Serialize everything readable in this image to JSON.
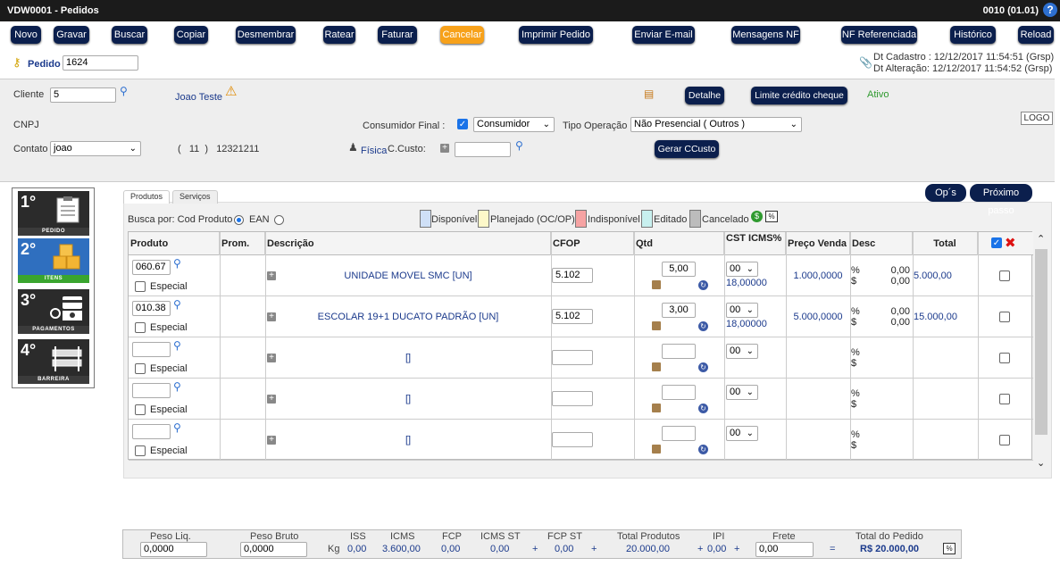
{
  "window": {
    "title": "VDW0001 - Pedidos",
    "session": "0010 (01.01)",
    "help": "?"
  },
  "toolbar": [
    "Novo",
    "Gravar",
    "Buscar",
    "Copiar",
    "Desmembrar",
    "Ratear",
    "Faturar",
    "Cancelar",
    "Imprimir Pedido",
    "Enviar E-mail",
    "Mensagens NF",
    "NF Referenciada",
    "Histórico",
    "Reload"
  ],
  "pedido": {
    "label": "Pedido",
    "value": "1624"
  },
  "dates": {
    "cadastro": "Dt Cadastro : 12/12/2017 11:54:51 (Grsp)",
    "alteracao": "Dt Alteração: 12/12/2017 11:54:52 (Grsp)"
  },
  "cliente": {
    "label": "Cliente",
    "value": "5",
    "nome": "Joao Teste",
    "detalhe_btn": "Detalhe",
    "limite_btn": "Limite crédito cheque",
    "status": "Ativo",
    "cnpj_label": "CNPJ",
    "consumidor_label": "Consumidor Final :",
    "consumidor_value": "Consumidor",
    "tipo_op_label": "Tipo Operação",
    "tipo_op_value": "Não Presencial ( Outros )",
    "logo": "LOGO",
    "contato_label": "Contato",
    "contato_value": "joao",
    "fone": "(   11  )   12321211",
    "fisica": "Física",
    "ccusto_label": "C.Custo:",
    "gerar_btn": "Gerar CCusto"
  },
  "steps": [
    {
      "num": "1°",
      "label": "PEDIDO"
    },
    {
      "num": "2°",
      "label": "ITENS"
    },
    {
      "num": "3°",
      "label": "PAGAMENTOS"
    },
    {
      "num": "4°",
      "label": "BARREIRA"
    }
  ],
  "tabs": [
    "Produtos",
    "Serviços"
  ],
  "nav_buttons": {
    "ops": "Op´s",
    "proximo": "Próximo passo"
  },
  "busca": {
    "label": "Busca por: Cod Produto",
    "ean": "EAN"
  },
  "legend": [
    {
      "label": "Disponível",
      "color": "#cfe0f7"
    },
    {
      "label": "Planejado (OC/OP)",
      "color": "#fdf8c9"
    },
    {
      "label": "Indisponível",
      "color": "#f6a3a3"
    },
    {
      "label": "Editado",
      "color": "#c8f0ef"
    },
    {
      "label": "Cancelado",
      "color": "#bcbcbc"
    }
  ],
  "legend_pct": "%",
  "grid": {
    "headers": [
      "Produto",
      "Prom.",
      "Descrição",
      "CFOP",
      "Qtd",
      "CST ICMS%",
      "Preço Venda",
      "Desc",
      "Total"
    ],
    "especial": "Especial",
    "rows": [
      {
        "produto": "060.67",
        "descricao": "UNIDADE MOVEL SMC [UN]",
        "cfop": "5.102",
        "qtd": "5,00",
        "cst": "00",
        "icms": "18,00000",
        "preco": "1.000,0000",
        "desc_pct": "0,00",
        "desc_val": "0,00",
        "total": "5.000,00"
      },
      {
        "produto": "010.38",
        "descricao": "ESCOLAR 19+1 DUCATO PADRÃO [UN]",
        "cfop": "5.102",
        "qtd": "3,00",
        "cst": "00",
        "icms": "18,00000",
        "preco": "5.000,0000",
        "desc_pct": "0,00",
        "desc_val": "0,00",
        "total": "15.000,00"
      },
      {
        "produto": "",
        "descricao": "[]",
        "cfop": "",
        "qtd": "",
        "cst": "00",
        "icms": "",
        "preco": "",
        "desc_pct": "",
        "desc_val": "",
        "total": ""
      },
      {
        "produto": "",
        "descricao": "[]",
        "cfop": "",
        "qtd": "",
        "cst": "00",
        "icms": "",
        "preco": "",
        "desc_pct": "",
        "desc_val": "",
        "total": ""
      },
      {
        "produto": "",
        "descricao": "[]",
        "cfop": "",
        "qtd": "",
        "cst": "00",
        "icms": "",
        "preco": "",
        "desc_pct": "",
        "desc_val": "",
        "total": ""
      }
    ],
    "pct": "%",
    "dollar": "$"
  },
  "footer": {
    "peso_liq_label": "Peso Liq.",
    "peso_liq": "0,0000",
    "peso_bruto_label": "Peso Bruto",
    "peso_bruto": "0,0000",
    "kg": "Kg",
    "iss_label": "ISS",
    "iss": "0,00",
    "icms_label": "ICMS",
    "icms": "3.600,00",
    "fcp_label": "FCP",
    "fcp": "0,00",
    "icms_st_label": "ICMS ST",
    "icms_st": "0,00",
    "fcp_st_label": "FCP ST",
    "fcp_st": "0,00",
    "total_prod_label": "Total Produtos",
    "total_prod": "20.000,00",
    "ipi_label": "IPI",
    "ipi": "0,00",
    "frete_label": "Frete",
    "frete": "0,00",
    "total_ped_label": "Total do Pedido",
    "total_ped": "R$ 20.000,00",
    "plus": "+",
    "eq": "=",
    "pct": "%"
  }
}
